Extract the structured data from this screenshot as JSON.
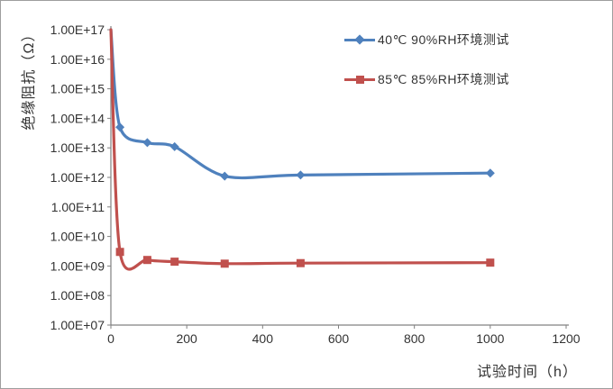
{
  "chart_data": {
    "type": "line",
    "title": "",
    "xlabel": "试验时间（h）",
    "ylabel": "绝缘阻抗（Ω）",
    "grid": false,
    "legend_position": "top-right",
    "x_axis": {
      "min": 0,
      "max": 1200,
      "tick_interval": 200,
      "ticks": [
        0,
        200,
        400,
        600,
        800,
        1000,
        1200
      ]
    },
    "y_axis": {
      "scale": "log",
      "min": 10000000.0,
      "max": 1e+17,
      "tick_labels": [
        "1.00E+17",
        "1.00E+16",
        "1.00E+15",
        "1.00E+14",
        "1.00E+13",
        "1.00E+12",
        "1.00E+11",
        "1.00E+10",
        "1.00E+09",
        "1.00E+08",
        "1.00E+07"
      ]
    },
    "series": [
      {
        "name": "40℃ 90%RH环境测试",
        "color": "#4F81BD",
        "marker": "diamond",
        "points": [
          [
            0,
            1e+17
          ],
          [
            24,
            50000000000000.0
          ],
          [
            96,
            15000000000000.0
          ],
          [
            168,
            11000000000000.0
          ],
          [
            300,
            1100000000000.0
          ],
          [
            500,
            1200000000000.0
          ],
          [
            1000,
            1400000000000.0
          ]
        ]
      },
      {
        "name": "85℃ 85%RH环境测试",
        "color": "#C0504D",
        "marker": "square",
        "points": [
          [
            0,
            1e+17
          ],
          [
            24,
            3000000000.0
          ],
          [
            96,
            1600000000.0
          ],
          [
            168,
            1400000000.0
          ],
          [
            300,
            1200000000.0
          ],
          [
            500,
            1250000000.0
          ],
          [
            1000,
            1300000000.0
          ]
        ]
      }
    ],
    "colors": {
      "axis": "#808080",
      "tick": "#808080",
      "text": "#333333",
      "background": "#ffffff",
      "border": "#9e9e9e"
    }
  }
}
